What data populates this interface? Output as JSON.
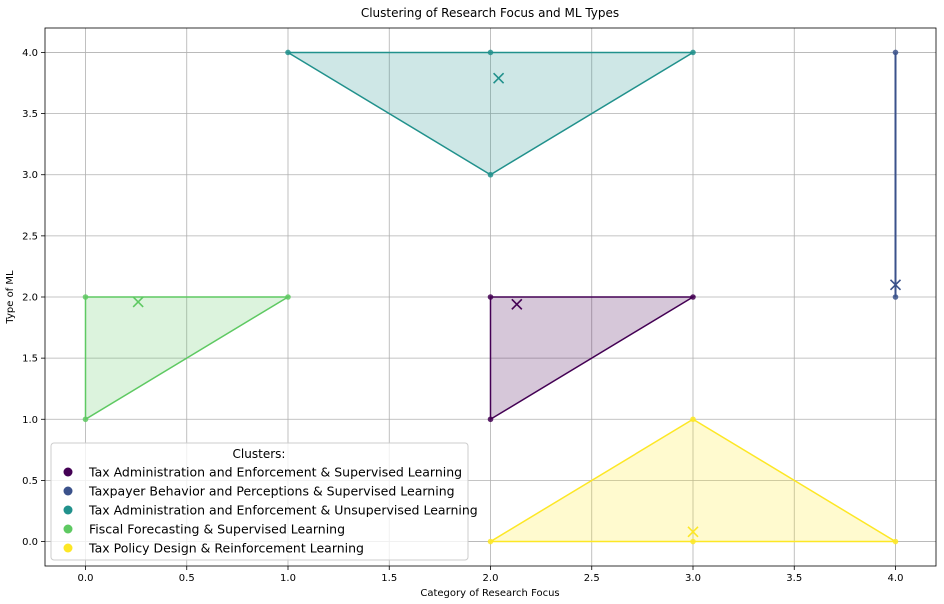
{
  "chart_data": {
    "type": "scatter",
    "title": "Clustering of Research Focus and ML Types",
    "xlabel": "Category of Research Focus",
    "ylabel": "Type of ML",
    "xlim": [
      -0.2,
      4.2
    ],
    "ylim": [
      -0.2,
      4.2
    ],
    "x_ticks": [
      "0.0",
      "0.5",
      "1.0",
      "1.5",
      "2.0",
      "2.5",
      "3.0",
      "3.5",
      "4.0"
    ],
    "y_ticks": [
      "0.0",
      "0.5",
      "1.0",
      "1.5",
      "2.0",
      "2.5",
      "3.0",
      "3.5",
      "4.0"
    ],
    "grid": true,
    "legend": {
      "title": "Clusters:",
      "position": "lower-left"
    },
    "series": [
      {
        "name": "Tax Administration and Enforcement & Supervised Learning",
        "color": "#440154",
        "points": [
          [
            2,
            1
          ],
          [
            2,
            2
          ],
          [
            3,
            2
          ]
        ],
        "hull": [
          [
            2,
            1
          ],
          [
            3,
            2
          ],
          [
            2,
            2
          ]
        ],
        "centroid": [
          2.13,
          1.94
        ]
      },
      {
        "name": "Taxpayer Behavior and Perceptions & Supervised Learning",
        "color": "#3b528b",
        "points": [
          [
            4,
            2
          ],
          [
            4,
            4
          ]
        ],
        "hull": [
          [
            4,
            2
          ],
          [
            4,
            4
          ]
        ],
        "centroid": [
          4.0,
          2.1
        ]
      },
      {
        "name": "Tax Administration and Enforcement & Unsupervised Learning",
        "color": "#21918c",
        "points": [
          [
            1,
            4
          ],
          [
            2,
            4
          ],
          [
            2,
            3
          ],
          [
            3,
            4
          ]
        ],
        "hull": [
          [
            1,
            4
          ],
          [
            2,
            3
          ],
          [
            3,
            4
          ]
        ],
        "centroid": [
          2.04,
          3.79
        ]
      },
      {
        "name": "Fiscal Forecasting & Supervised Learning",
        "color": "#5ec962",
        "points": [
          [
            0,
            2
          ],
          [
            0,
            1
          ],
          [
            1,
            2
          ]
        ],
        "hull": [
          [
            0,
            2
          ],
          [
            0,
            1
          ],
          [
            1,
            2
          ]
        ],
        "centroid": [
          0.26,
          1.96
        ]
      },
      {
        "name": "Tax Policy Design & Reinforcement Learning",
        "color": "#fde725",
        "points": [
          [
            2,
            0
          ],
          [
            3,
            0
          ],
          [
            3,
            1
          ],
          [
            4,
            0
          ]
        ],
        "hull": [
          [
            2,
            0
          ],
          [
            3,
            1
          ],
          [
            4,
            0
          ]
        ],
        "centroid": [
          3.0,
          0.08
        ]
      }
    ]
  }
}
